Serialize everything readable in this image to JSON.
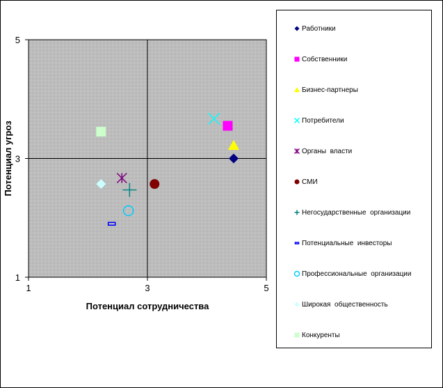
{
  "chart_data": {
    "type": "scatter",
    "xlabel": "Потенциал  сотрудничества",
    "ylabel": "Потенциал угроз",
    "xlim": [
      1,
      5
    ],
    "ylim": [
      1,
      5
    ],
    "x_ticks": [
      "1",
      "3",
      "5"
    ],
    "y_ticks": [
      "1",
      "3",
      "5"
    ],
    "grid": true,
    "reference_lines": {
      "x": 3,
      "y": 3
    },
    "legend_position": "right",
    "plot_background": "#c0c0c0",
    "series": [
      {
        "name": "Работники",
        "x": 4.45,
        "y": 3.0,
        "color": "#000080",
        "marker": "diamond"
      },
      {
        "name": "Собственники",
        "x": 4.35,
        "y": 3.55,
        "color": "#ff00ff",
        "marker": "square"
      },
      {
        "name": "Бизнес-партнеры",
        "x": 4.45,
        "y": 3.22,
        "color": "#ffff00",
        "marker": "triangle"
      },
      {
        "name": "Потребители",
        "x": 4.12,
        "y": 3.67,
        "color": "#00ffff",
        "marker": "x"
      },
      {
        "name": "Органы  власти",
        "x": 2.57,
        "y": 2.67,
        "color": "#800080",
        "marker": "star"
      },
      {
        "name": "СМИ",
        "x": 3.12,
        "y": 2.57,
        "color": "#800000",
        "marker": "circle"
      },
      {
        "name": "Негосударственные  организации",
        "x": 2.7,
        "y": 2.47,
        "color": "#008080",
        "marker": "plus"
      },
      {
        "name": "Потенциальные  инвесторы",
        "x": 2.4,
        "y": 1.9,
        "color": "#0000ff",
        "marker": "dash"
      },
      {
        "name": "Профессиональные  организации",
        "x": 2.68,
        "y": 2.12,
        "color": "#00ccff",
        "marker": "open-circle"
      },
      {
        "name": "Широкая  общественность",
        "x": 2.22,
        "y": 2.57,
        "color": "#ccffff",
        "marker": "diamond"
      },
      {
        "name": "Конкуренты",
        "x": 2.22,
        "y": 3.45,
        "color": "#ccffcc",
        "marker": "square"
      }
    ]
  }
}
